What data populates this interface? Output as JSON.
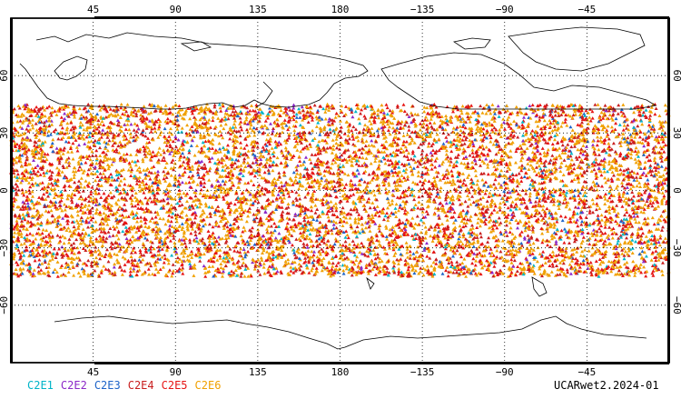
{
  "map": {
    "projection": "cylindrical equidistant (plate carrée)",
    "central_longitude": 180,
    "lon_ticks": [
      "45",
      "90",
      "135",
      "180",
      "−135",
      "−90",
      "−45"
    ],
    "lat_ticks": [
      "60",
      "30",
      "0",
      "−30",
      "−60"
    ],
    "lat_tick_values": [
      60,
      30,
      0,
      -30,
      -60
    ],
    "lon_tick_values": [
      45,
      90,
      135,
      180,
      225,
      270,
      315
    ],
    "gridlines": "dotted",
    "data_band_lat_range": [
      -45,
      45
    ],
    "coastlines": "black outline"
  },
  "legend": [
    {
      "label": "C2E1",
      "color": "#00b4c8"
    },
    {
      "label": "C2E2",
      "color": "#8c28c8"
    },
    {
      "label": "C2E3",
      "color": "#1e64c8"
    },
    {
      "label": "C2E4",
      "color": "#c81e1e"
    },
    {
      "label": "C2E5",
      "color": "#e61414"
    },
    {
      "label": "C2E6",
      "color": "#f0a000"
    }
  ],
  "credit": "UCARwet2.2024-01"
}
